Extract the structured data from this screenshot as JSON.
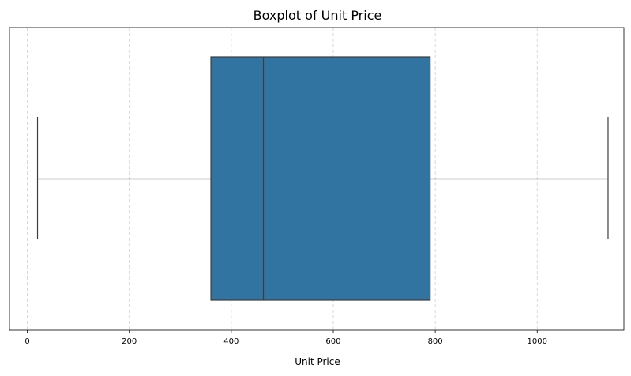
{
  "chart_data": {
    "type": "boxplot",
    "title": "Boxplot of Unit Price",
    "xlabel": "Unit Price",
    "ylabel": "",
    "orientation": "horizontal",
    "xlim": [
      -35,
      1170
    ],
    "xticks": [
      0,
      200,
      400,
      600,
      800,
      1000
    ],
    "grid": true,
    "box": {
      "whisker_low": 20,
      "q1": 360,
      "median": 463,
      "q3": 790,
      "whisker_high": 1139
    },
    "box_color": "#3274a1",
    "line_color": "#3d3d3d"
  }
}
